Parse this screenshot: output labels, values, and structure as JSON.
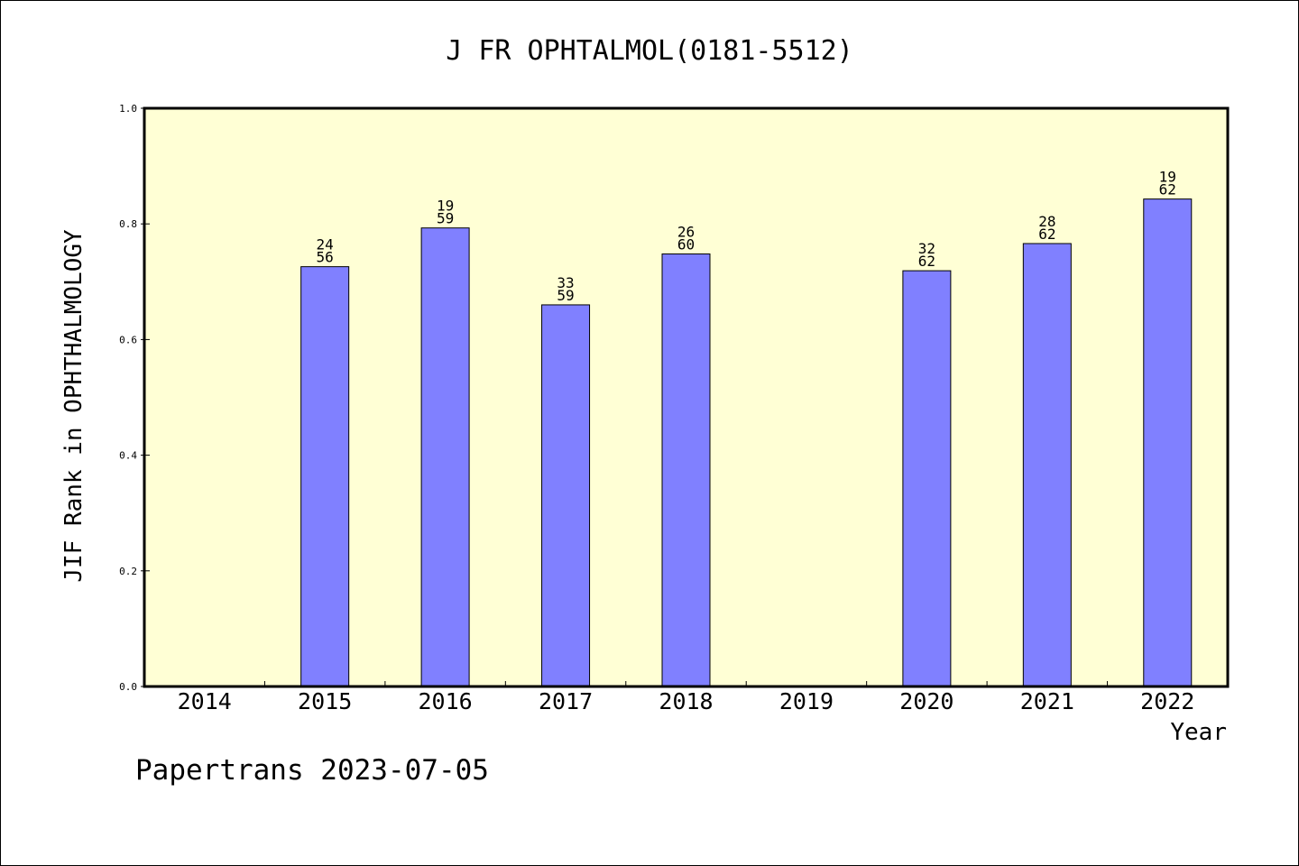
{
  "chart_data": {
    "type": "bar",
    "title": "J FR OPHTALMOL(0181-5512)",
    "xlabel": "Year",
    "ylabel": "JIF Rank in OPHTHALMOLOGY",
    "ylim": [
      0,
      1.0
    ],
    "yticks": [
      "0.0",
      "0.2",
      "0.4",
      "0.6",
      "0.8",
      "1.0"
    ],
    "categories": [
      "2014",
      "2015",
      "2016",
      "2017",
      "2018",
      "2019",
      "2020",
      "2021",
      "2022"
    ],
    "values": [
      null,
      0.726,
      0.793,
      0.66,
      0.748,
      null,
      0.719,
      0.766,
      0.843
    ],
    "labels_top": [
      "",
      "24",
      "19",
      "33",
      "26",
      "",
      "32",
      "28",
      "19"
    ],
    "labels_bottom": [
      "",
      "56",
      "59",
      "59",
      "60",
      "",
      "62",
      "62",
      "62"
    ],
    "grid": false,
    "plot_background": "#ffffd5",
    "bar_color": "#8080ff"
  },
  "footer": "Papertrans 2023-07-05"
}
